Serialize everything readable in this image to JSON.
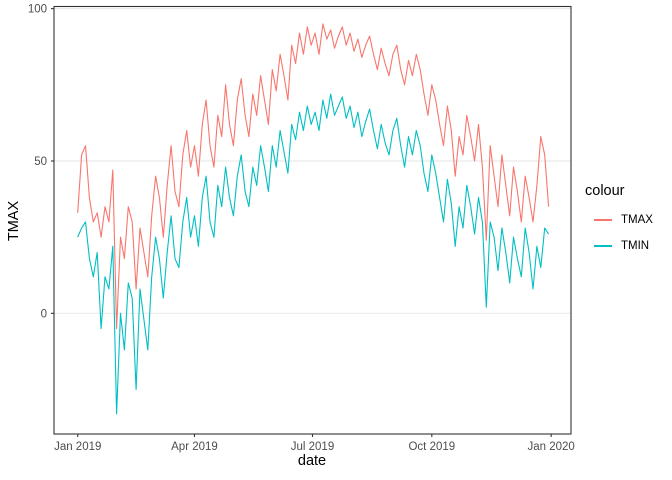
{
  "figure": {
    "y_axis_title": "TMAX",
    "x_axis_title": "date"
  },
  "legend": {
    "title": "colour",
    "items": [
      {
        "label": "TMAX",
        "color": "#F8766D"
      },
      {
        "label": "TMIN",
        "color": "#00BFC4"
      }
    ]
  },
  "style": {
    "background": "#FFFFFF",
    "panel_border_color": "#333333",
    "grid_color": "#EBEBEB",
    "tick_color": "#333333",
    "tick_label_color": "#4D4D4D",
    "axis_title_color": "#000000"
  },
  "chart_data": {
    "type": "line",
    "title": "",
    "xlabel": "date",
    "ylabel": "TMAX",
    "legend_title": "colour",
    "legend_position": "right",
    "grid": "horizontal-major-only",
    "x_unit": "days since 2019-01-01 (values estimated from pixels, sampled every 3 days)",
    "x_tick_days": [
      0,
      90,
      181,
      273,
      365
    ],
    "x_tick_labels": [
      "Jan 2019",
      "Apr 2019",
      "Jul 2019",
      "Oct 2019",
      "Jan 2020"
    ],
    "y_ticks": [
      0,
      50,
      100
    ],
    "y_tick_labels": [
      "0",
      "50",
      "100"
    ],
    "x_range": [
      -18.3,
      380.3
    ],
    "y_range": [
      -39.6,
      100.7
    ],
    "sample_start_day": 0,
    "sample_step_days": 3,
    "series": [
      {
        "name": "TMAX",
        "color": "#F8766D",
        "values": [
          33,
          52,
          55,
          38,
          30,
          33,
          25,
          35,
          30,
          47,
          -5,
          25,
          18,
          35,
          30,
          8,
          28,
          20,
          12,
          32,
          45,
          38,
          25,
          42,
          55,
          40,
          35,
          52,
          60,
          48,
          55,
          45,
          62,
          70,
          55,
          48,
          65,
          58,
          75,
          62,
          55,
          70,
          77,
          65,
          58,
          72,
          65,
          78,
          70,
          62,
          80,
          73,
          85,
          78,
          70,
          88,
          82,
          92,
          85,
          94,
          88,
          92,
          85,
          95,
          90,
          93,
          87,
          91,
          94,
          88,
          92,
          86,
          90,
          84,
          88,
          91,
          85,
          80,
          87,
          82,
          78,
          85,
          88,
          80,
          75,
          83,
          78,
          85,
          80,
          72,
          65,
          75,
          70,
          62,
          55,
          68,
          60,
          45,
          58,
          52,
          65,
          58,
          50,
          62,
          48,
          24,
          55,
          45,
          35,
          52,
          42,
          32,
          48,
          40,
          30,
          45,
          38,
          30,
          42,
          58,
          52,
          35
        ]
      },
      {
        "name": "TMIN",
        "color": "#00BFC4",
        "values": [
          25,
          28,
          30,
          18,
          12,
          20,
          -5,
          12,
          8,
          22,
          -33,
          0,
          -12,
          10,
          5,
          -25,
          8,
          -2,
          -12,
          12,
          25,
          18,
          5,
          20,
          32,
          18,
          15,
          30,
          38,
          25,
          32,
          22,
          38,
          45,
          30,
          25,
          42,
          35,
          48,
          38,
          32,
          45,
          52,
          40,
          35,
          48,
          42,
          55,
          48,
          40,
          55,
          48,
          60,
          53,
          46,
          62,
          57,
          66,
          60,
          68,
          62,
          66,
          60,
          70,
          64,
          72,
          65,
          68,
          71,
          64,
          68,
          61,
          66,
          58,
          63,
          67,
          60,
          54,
          62,
          56,
          52,
          60,
          64,
          55,
          48,
          58,
          52,
          60,
          55,
          46,
          40,
          52,
          46,
          38,
          30,
          44,
          36,
          22,
          35,
          28,
          42,
          35,
          26,
          38,
          30,
          2,
          30,
          25,
          14,
          28,
          20,
          10,
          25,
          18,
          12,
          28,
          20,
          8,
          22,
          15,
          28,
          26
        ]
      }
    ]
  }
}
